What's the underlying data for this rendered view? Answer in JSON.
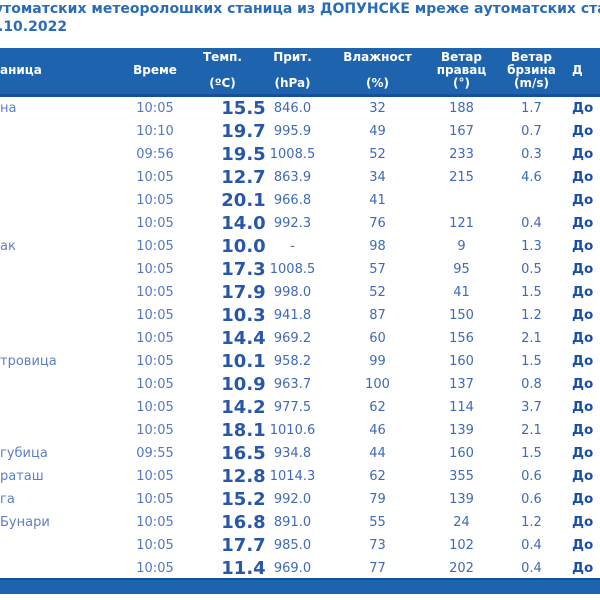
{
  "page": {
    "title_line1": "утоматских метеоролошких станица из ДОПУНСКЕ мреже аутоматских стан",
    "title_line2": ".10.2022"
  },
  "table": {
    "headers": {
      "station": "аница",
      "time": "Време",
      "temp_label": "Темп.",
      "temp_unit": "(ºC)",
      "pressure_label": "Прит.",
      "pressure_unit": "(hPa)",
      "humidity_label": "Влажност",
      "humidity_unit": "(%)",
      "wind_dir_line1": "Ветар",
      "wind_dir_line2": "правац",
      "wind_dir_unit": "(°)",
      "wind_speed_line1": "Ветар",
      "wind_speed_line2": "брзина",
      "wind_speed_unit": "(m/s)",
      "last": "Д"
    },
    "rows": [
      {
        "station": "на",
        "time": "10:05",
        "temp": "15.5",
        "pressure": "846.0",
        "humidity": "32",
        "wind_dir": "188",
        "wind_speed": "1.7",
        "source": "До"
      },
      {
        "station": "",
        "time": "10:10",
        "temp": "19.7",
        "pressure": "995.9",
        "humidity": "49",
        "wind_dir": "167",
        "wind_speed": "0.7",
        "source": "До"
      },
      {
        "station": "",
        "time": "09:56",
        "temp": "19.5",
        "pressure": "1008.5",
        "humidity": "52",
        "wind_dir": "233",
        "wind_speed": "0.3",
        "source": "До"
      },
      {
        "station": "",
        "time": "10:05",
        "temp": "12.7",
        "pressure": "863.9",
        "humidity": "34",
        "wind_dir": "215",
        "wind_speed": "4.6",
        "source": "До"
      },
      {
        "station": "",
        "time": "10:05",
        "temp": "20.1",
        "pressure": "966.8",
        "humidity": "41",
        "wind_dir": "",
        "wind_speed": "",
        "source": "До"
      },
      {
        "station": "",
        "time": "10:05",
        "temp": "14.0",
        "pressure": "992.3",
        "humidity": "76",
        "wind_dir": "121",
        "wind_speed": "0.4",
        "source": "До"
      },
      {
        "station": "ак",
        "time": "10:05",
        "temp": "10.0",
        "pressure": "-",
        "humidity": "98",
        "wind_dir": "9",
        "wind_speed": "1.3",
        "source": "До"
      },
      {
        "station": "",
        "time": "10:05",
        "temp": "17.3",
        "pressure": "1008.5",
        "humidity": "57",
        "wind_dir": "95",
        "wind_speed": "0.5",
        "source": "До"
      },
      {
        "station": "",
        "time": "10:05",
        "temp": "17.9",
        "pressure": "998.0",
        "humidity": "52",
        "wind_dir": "41",
        "wind_speed": "1.5",
        "source": "До"
      },
      {
        "station": "",
        "time": "10:05",
        "temp": "10.3",
        "pressure": "941.8",
        "humidity": "87",
        "wind_dir": "150",
        "wind_speed": "1.2",
        "source": "До"
      },
      {
        "station": "",
        "time": "10:05",
        "temp": "14.4",
        "pressure": "969.2",
        "humidity": "60",
        "wind_dir": "156",
        "wind_speed": "2.1",
        "source": "До"
      },
      {
        "station": "тровица",
        "time": "10:05",
        "temp": "10.1",
        "pressure": "958.2",
        "humidity": "99",
        "wind_dir": "160",
        "wind_speed": "1.5",
        "source": "До"
      },
      {
        "station": "",
        "time": "10:05",
        "temp": "10.9",
        "pressure": "963.7",
        "humidity": "100",
        "wind_dir": "137",
        "wind_speed": "0.8",
        "source": "До"
      },
      {
        "station": "",
        "time": "10:05",
        "temp": "14.2",
        "pressure": "977.5",
        "humidity": "62",
        "wind_dir": "114",
        "wind_speed": "3.7",
        "source": "До"
      },
      {
        "station": "",
        "time": "10:05",
        "temp": "18.1",
        "pressure": "1010.6",
        "humidity": "46",
        "wind_dir": "139",
        "wind_speed": "2.1",
        "source": "До"
      },
      {
        "station": "губица",
        "time": "09:55",
        "temp": "16.5",
        "pressure": "934.8",
        "humidity": "44",
        "wind_dir": "160",
        "wind_speed": "1.5",
        "source": "До"
      },
      {
        "station": "раташ",
        "time": "10:05",
        "temp": "12.8",
        "pressure": "1014.3",
        "humidity": "62",
        "wind_dir": "355",
        "wind_speed": "0.6",
        "source": "До"
      },
      {
        "station": "га",
        "time": "10:05",
        "temp": "15.2",
        "pressure": "992.0",
        "humidity": "79",
        "wind_dir": "139",
        "wind_speed": "0.6",
        "source": "До"
      },
      {
        "station": "Бунари",
        "time": "10:05",
        "temp": "16.8",
        "pressure": "891.0",
        "humidity": "55",
        "wind_dir": "24",
        "wind_speed": "1.2",
        "source": "До"
      },
      {
        "station": "",
        "time": "10:05",
        "temp": "17.7",
        "pressure": "985.0",
        "humidity": "73",
        "wind_dir": "102",
        "wind_speed": "0.4",
        "source": "До"
      },
      {
        "station": "",
        "time": "10:05",
        "temp": "11.4",
        "pressure": "969.0",
        "humidity": "77",
        "wind_dir": "202",
        "wind_speed": "0.4",
        "source": "До"
      }
    ]
  },
  "colors": {
    "header_bar": "#1e63ae",
    "header_border": "#164f9a",
    "header_text": "#ffffff",
    "title_text": "#2b6cb8",
    "data_text": "#3f6ab8",
    "temperature_text": "#2857a8",
    "station_text": "#5e7ec9",
    "source_text": "#1a4fa8"
  }
}
